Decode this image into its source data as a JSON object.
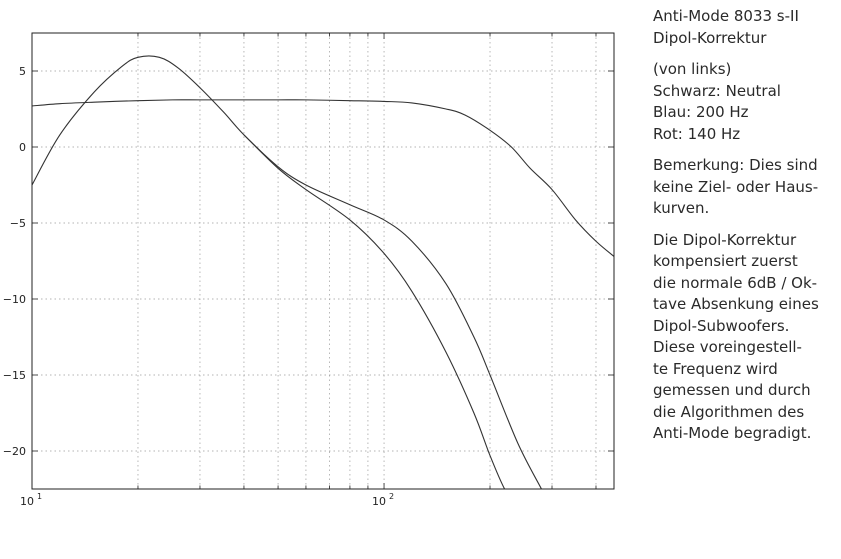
{
  "chart_data": {
    "type": "line",
    "title": "",
    "xlabel": "",
    "ylabel": "",
    "xscale": "log",
    "xlim": [
      10,
      450
    ],
    "ylim": [
      -22.5,
      7.5
    ],
    "grid": true,
    "x_ticks": [
      10,
      100
    ],
    "x_tick_labels": [
      {
        "base": "10",
        "exp": "1"
      },
      {
        "base": "10",
        "exp": "2"
      }
    ],
    "y_ticks": [
      5,
      0,
      -5,
      -10,
      -15,
      -20
    ],
    "y_tick_labels": [
      "5",
      "0",
      "−5",
      "−10",
      "−15",
      "−20"
    ],
    "series": [
      {
        "color": "#333333",
        "x": [
          10,
          12,
          15,
          20,
          25,
          30,
          40,
          50,
          60,
          80,
          100,
          120,
          150,
          170,
          200,
          230,
          260,
          300,
          350,
          400,
          450
        ],
        "y": [
          2.7,
          2.85,
          2.95,
          3.05,
          3.1,
          3.1,
          3.1,
          3.1,
          3.1,
          3.05,
          3.0,
          2.9,
          2.5,
          2.1,
          1.1,
          0.0,
          -1.4,
          -2.8,
          -4.8,
          -6.2,
          -7.2
        ]
      },
      {
        "color": "#333333",
        "x": [
          10,
          12,
          15,
          18,
          20,
          23,
          26,
          30,
          35,
          40,
          50,
          60,
          80,
          100,
          120,
          150,
          180,
          200,
          240,
          280,
          300
        ],
        "y": [
          -2.5,
          0.8,
          3.6,
          5.3,
          5.9,
          5.9,
          5.2,
          3.9,
          2.3,
          0.8,
          -1.3,
          -2.5,
          -3.8,
          -4.8,
          -6.2,
          -9.0,
          -12.5,
          -15.0,
          -19.5,
          -22.5,
          -23.8
        ]
      },
      {
        "color": "#333333",
        "x": [
          40,
          50,
          60,
          80,
          100,
          120,
          150,
          180,
          200,
          220,
          240
        ],
        "y": [
          0.8,
          -1.4,
          -2.8,
          -4.8,
          -7.0,
          -9.5,
          -13.5,
          -17.5,
          -20.3,
          -22.5,
          -23.8
        ]
      }
    ]
  },
  "notes": {
    "title_lines": [
      "Anti-Mode 8033 s-II",
      "Dipol-Korrektur"
    ],
    "legend_lines": [
      "(von links)",
      "Schwarz: Neutral",
      "Blau: 200 Hz",
      "Rot: 140 Hz"
    ],
    "remark_lines": [
      "Bemerkung: Dies sind",
      "keine Ziel- oder Haus-",
      "kurven."
    ],
    "description_lines": [
      "Die Dipol-Korrektur",
      "kompensiert zuerst",
      "die normale 6dB / Ok-",
      "tave Absenkung eines",
      "Dipol-Subwoofers.",
      "Diese voreingestell-",
      "te Frequenz wird",
      "gemessen und durch",
      "die Algorithmen des",
      "Anti-Mode begradigt."
    ]
  }
}
